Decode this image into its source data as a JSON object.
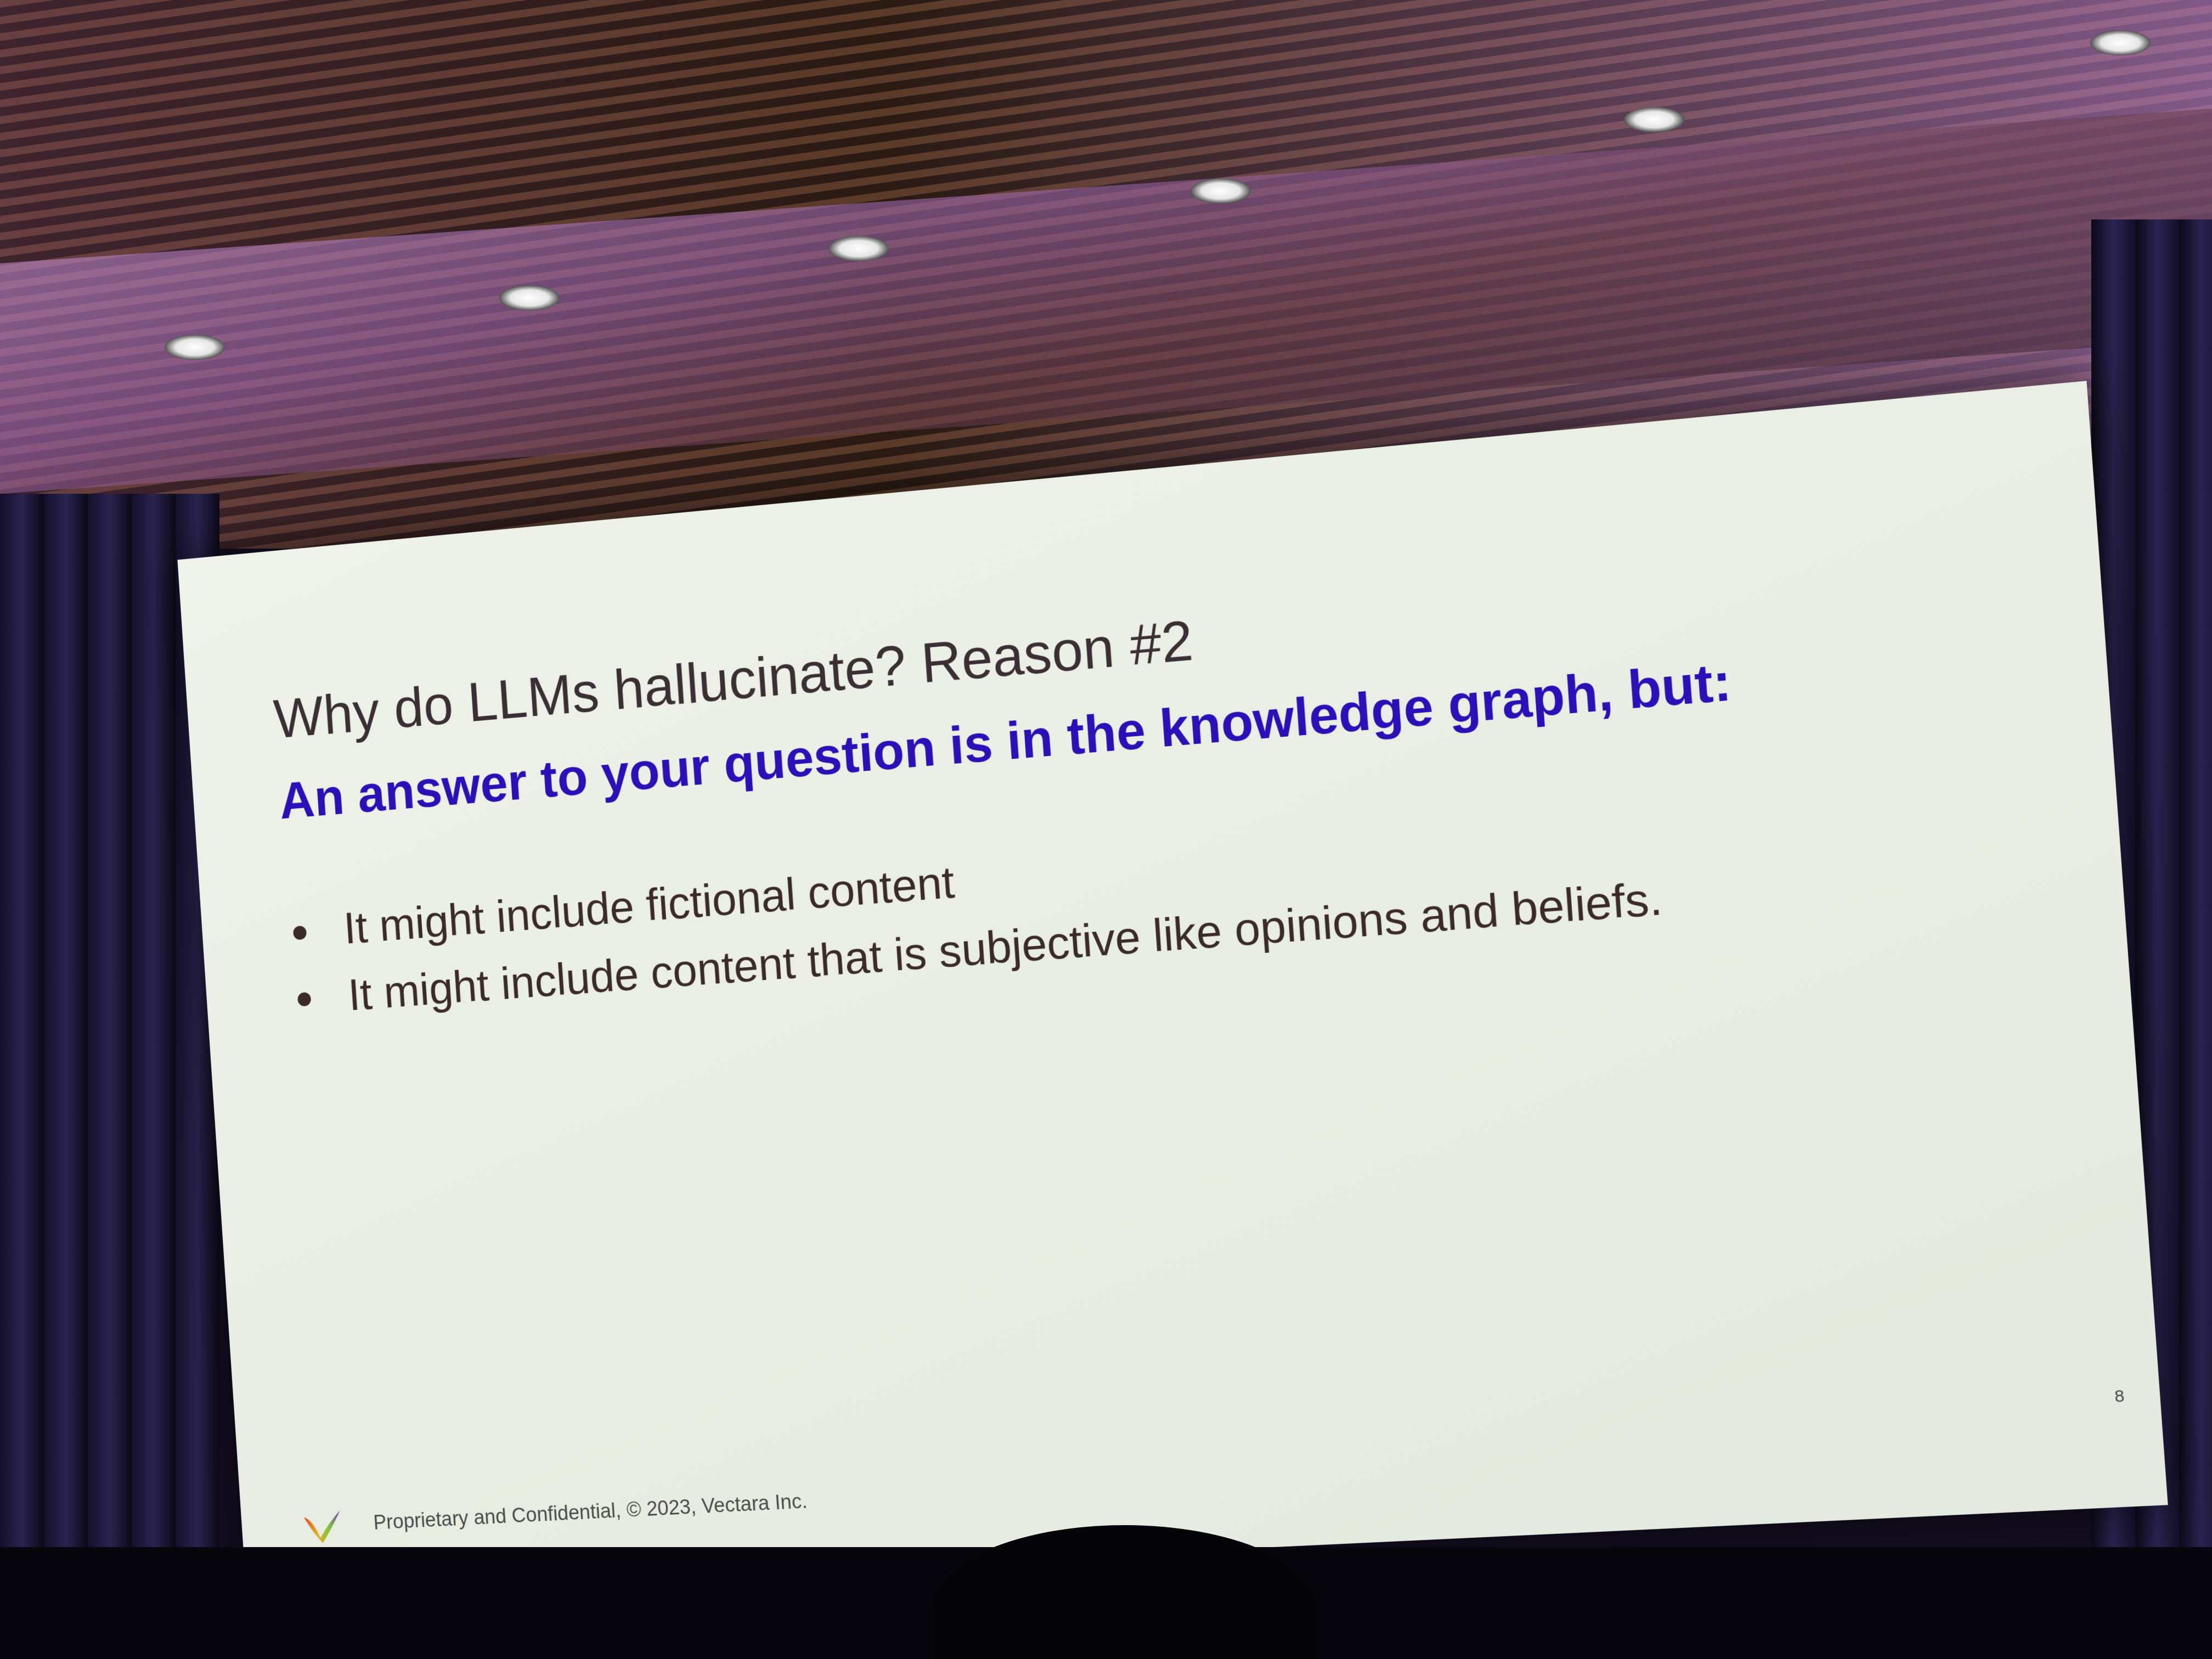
{
  "slide": {
    "title": "Why do LLMs hallucinate? Reason #2",
    "subtitle": "An answer to your question is in the knowledge graph, but:",
    "bullets": [
      "It might include fictional content",
      "It might include content that is subjective like opinions and beliefs."
    ],
    "footer": "Proprietary and Confidential, © 2023, Vectara Inc.",
    "page_number": "8"
  },
  "colors": {
    "title": "#3a2f33",
    "subtitle": "#2b10b8",
    "body": "#3a2a2a",
    "background": "#eef2e8"
  }
}
